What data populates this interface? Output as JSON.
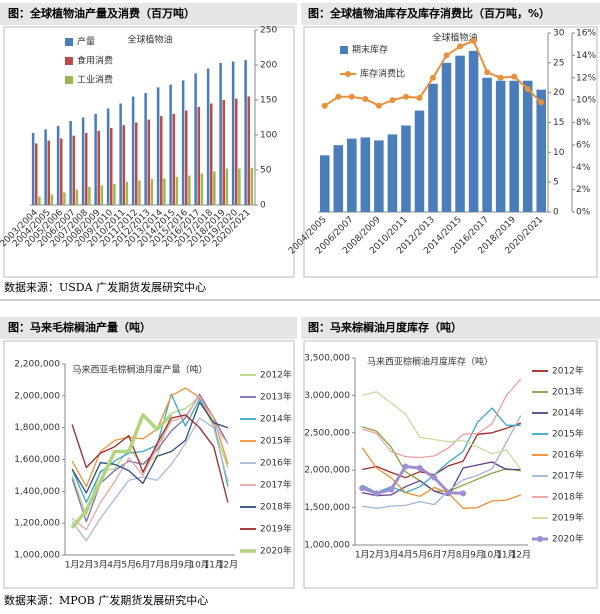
{
  "sources": [
    "数据来源：USDA 广发期货发展研究中心",
    "数据来源：MPOB 广发期货发展研究中心"
  ],
  "chart_data": [
    {
      "type": "bar",
      "title": "图：全球植物油产量及消费（百万吨）",
      "subtitle": "全球植物油",
      "categories": [
        "2003/2004",
        "2004/2005",
        "2005/2006",
        "2006/2007",
        "2007/2008",
        "2008/2009",
        "2009/2010",
        "2010/2011",
        "2011/2012",
        "2012/2013",
        "2013/2014",
        "2014/2015",
        "2015/2016",
        "2016/2017",
        "2017/2018",
        "2018/2019",
        "2019/2020",
        "2020/2021"
      ],
      "series": [
        {
          "name": "产量",
          "color": "#4a7ebb",
          "values": [
            103,
            108,
            113,
            120,
            125,
            130,
            138,
            145,
            155,
            160,
            168,
            172,
            178,
            188,
            195,
            203,
            205,
            207
          ]
        },
        {
          "name": "食用消费",
          "color": "#be4b48",
          "values": [
            88,
            92,
            95,
            99,
            103,
            106,
            110,
            114,
            118,
            122,
            127,
            130,
            135,
            140,
            145,
            150,
            152,
            155
          ]
        },
        {
          "name": "工业消费",
          "color": "#98b954",
          "values": [
            12,
            15,
            18,
            22,
            26,
            28,
            30,
            33,
            35,
            37,
            38,
            40,
            42,
            45,
            48,
            52,
            52,
            53
          ]
        }
      ],
      "ylim": [
        0,
        250
      ],
      "yticks": [
        0,
        50,
        100,
        150,
        200,
        250
      ]
    },
    {
      "type": "bar",
      "title": "图：全球植物油库存及库存消费比（百万吨，%）",
      "subtitle": "全球植物油",
      "categories": [
        "2004/2005",
        null,
        "2006/2007",
        null,
        "2008/2009",
        null,
        "2010/2011",
        null,
        "2012/2013",
        null,
        "2014/2015",
        null,
        "2016/2017",
        null,
        "2018/2019",
        null,
        "2020/2021"
      ],
      "series": [
        {
          "name": "期末库存",
          "color": "#4a7ebb",
          "values": [
            9.5,
            11.2,
            12.3,
            12.5,
            12.0,
            13.0,
            14.5,
            17.0,
            21.5,
            25.0,
            26.2,
            27.0,
            22.5,
            22.0,
            22.0,
            22.0,
            20.5
          ]
        },
        {
          "name": "库存消费比",
          "color": "#e8913a",
          "type": "line",
          "axis": "y2",
          "values": [
            9.5,
            10.3,
            10.3,
            10.1,
            9.5,
            10.0,
            10.3,
            10.2,
            12.0,
            14.0,
            14.8,
            15.3,
            12.5,
            12.0,
            12.1,
            11.0,
            9.8
          ]
        }
      ],
      "ylim": [
        0,
        30
      ],
      "yticks": [
        0,
        5,
        10,
        15,
        20,
        25,
        30
      ],
      "y2lim": [
        0,
        16
      ],
      "y2ticks": [
        {
          "value": 0,
          "label": "0%"
        },
        {
          "value": 2,
          "label": "2%"
        },
        {
          "value": 4,
          "label": "4%"
        },
        {
          "value": 6,
          "label": "6%"
        },
        {
          "value": 8,
          "label": "8%"
        },
        {
          "value": 10,
          "label": "10%"
        },
        {
          "value": 12,
          "label": "12%"
        },
        {
          "value": 14,
          "label": "14%"
        },
        {
          "value": 16,
          "label": "16%"
        }
      ]
    },
    {
      "type": "line",
      "title": "图：马来毛棕榈油产量（吨）",
      "subtitle": "马来西亚毛棕榈油月度产量（吨）",
      "categories": [
        "1月",
        "2月",
        "3月",
        "4月",
        "5月",
        "6月",
        "7月",
        "8月",
        "9月",
        "10月",
        "11月",
        "12月"
      ],
      "series": [
        {
          "name": "2012年",
          "color": "#b6d57a",
          "values": [
            1500000,
            1250000,
            1530000,
            1540000,
            1670000,
            1570000,
            1620000,
            1890000,
            1920000,
            1990000,
            1800000,
            1550000
          ]
        },
        {
          "name": "2013年",
          "color": "#7a70b8",
          "values": [
            1480000,
            1210000,
            1450000,
            1530000,
            1590000,
            1570000,
            1660000,
            1780000,
            1860000,
            2010000,
            1860000,
            1700000
          ]
        },
        {
          "name": "2014年",
          "color": "#36a8c8",
          "values": [
            1540000,
            1330000,
            1520000,
            1590000,
            1640000,
            1650000,
            1690000,
            2010000,
            1810000,
            1980000,
            1830000,
            1430000
          ]
        },
        {
          "name": "2015年",
          "color": "#f0913a",
          "values": [
            1590000,
            1430000,
            1650000,
            1720000,
            1740000,
            1730000,
            1790000,
            2000000,
            2050000,
            1990000,
            1860000,
            1570000
          ]
        },
        {
          "name": "2016年",
          "color": "#a7b9d9",
          "values": [
            1210000,
            1090000,
            1230000,
            1350000,
            1470000,
            1490000,
            1470000,
            1570000,
            1700000,
            1860000,
            1800000,
            1460000
          ]
        },
        {
          "name": "2017年",
          "color": "#eca4a4",
          "values": [
            1230000,
            1160000,
            1330000,
            1460000,
            1610000,
            1500000,
            1680000,
            1840000,
            1870000,
            2000000,
            1820000,
            1700000
          ]
        },
        {
          "name": "2018年",
          "color": "#2f4d7c",
          "values": [
            1540000,
            1390000,
            1580000,
            1570000,
            1530000,
            1450000,
            1620000,
            1650000,
            1720000,
            1960000,
            1830000,
            1800000
          ]
        },
        {
          "name": "2019年",
          "color": "#a02828",
          "values": [
            1820000,
            1550000,
            1640000,
            1680000,
            1750000,
            1520000,
            1700000,
            1860000,
            1880000,
            1800000,
            1680000,
            1330000
          ]
        },
        {
          "name": "2020年",
          "color": "#b3d47e",
          "values": [
            1170000,
            1280000,
            1460000,
            1650000,
            1650000,
            1880000,
            1790000,
            1880000,
            null,
            null,
            null,
            null
          ]
        }
      ],
      "ylim": [
        1000000,
        2200000
      ],
      "yticks": [
        {
          "value": 1000000,
          "label": "1,000,000"
        },
        {
          "value": 1200000,
          "label": "1,200,000"
        },
        {
          "value": 1400000,
          "label": "1,400,000"
        },
        {
          "value": 1600000,
          "label": "1,600,000"
        },
        {
          "value": 1800000,
          "label": "1,800,000"
        },
        {
          "value": 2000000,
          "label": "2,000,000"
        },
        {
          "value": 2200000,
          "label": "2,200,000"
        }
      ]
    },
    {
      "type": "line",
      "title": "图：马来棕榈油月度库存（吨）",
      "subtitle": "马来西亚棕榈油月度库存（吨）",
      "categories": [
        "1月",
        "2月",
        "3月",
        "4月",
        "5月",
        "6月",
        "7月",
        "8月",
        "9月",
        "10月",
        "11月",
        "12月"
      ],
      "series": [
        {
          "name": "2012年",
          "color": "#9e2a2b",
          "values": [
            2010000,
            2050000,
            1970000,
            1900000,
            1980000,
            1940000,
            2060000,
            2120000,
            2480000,
            2500000,
            2560000,
            2630000
          ]
        },
        {
          "name": "2013年",
          "color": "#7fa53c",
          "values": [
            2580000,
            2520000,
            2310000,
            1980000,
            1860000,
            1720000,
            1720000,
            1800000,
            1880000,
            1960000,
            2020000,
            1990000
          ]
        },
        {
          "name": "2014年",
          "color": "#5b3f8c",
          "values": [
            1700000,
            1660000,
            1670000,
            1780000,
            1860000,
            1720000,
            1660000,
            2030000,
            2070000,
            2110000,
            2010000,
            2010000
          ]
        },
        {
          "name": "2015年",
          "color": "#3fa7c9",
          "values": [
            1800000,
            1700000,
            1780000,
            1700000,
            1780000,
            1940000,
            2110000,
            2250000,
            2640000,
            2830000,
            2600000,
            2600000
          ]
        },
        {
          "name": "2016年",
          "color": "#ee8f32",
          "values": [
            2300000,
            2030000,
            1900000,
            1700000,
            1650000,
            1770000,
            1690000,
            1490000,
            1500000,
            1590000,
            1600000,
            1670000
          ]
        },
        {
          "name": "2017年",
          "color": "#9fb4d8",
          "values": [
            1520000,
            1490000,
            1520000,
            1530000,
            1580000,
            1540000,
            1730000,
            1870000,
            1930000,
            2020000,
            2370000,
            2730000
          ]
        },
        {
          "name": "2018年",
          "color": "#ee9e9e",
          "values": [
            2550000,
            2490000,
            2250000,
            2180000,
            2170000,
            2190000,
            2300000,
            2480000,
            2490000,
            2620000,
            3000000,
            3220000
          ]
        },
        {
          "name": "2019年",
          "color": "#c6dd9c",
          "values": [
            3000000,
            3050000,
            2900000,
            2750000,
            2440000,
            2410000,
            2380000,
            2400000,
            2310000,
            2220000,
            2270000,
            2010000
          ]
        },
        {
          "name": "2020年",
          "color": "#9d8fd0",
          "values": [
            1760000,
            1690000,
            1740000,
            2050000,
            2030000,
            1900000,
            1700000,
            1690000,
            null,
            null,
            null,
            null
          ]
        }
      ],
      "ylim": [
        1000000,
        3500000
      ],
      "yticks": [
        {
          "value": 1000000,
          "label": "1,000,000"
        },
        {
          "value": 1500000,
          "label": "1,500,000"
        },
        {
          "value": 2000000,
          "label": "2,000,000"
        },
        {
          "value": 2500000,
          "label": "2,500,000"
        },
        {
          "value": 3000000,
          "label": "3,000,000"
        },
        {
          "value": 3500000,
          "label": "3,500,000"
        }
      ]
    }
  ]
}
